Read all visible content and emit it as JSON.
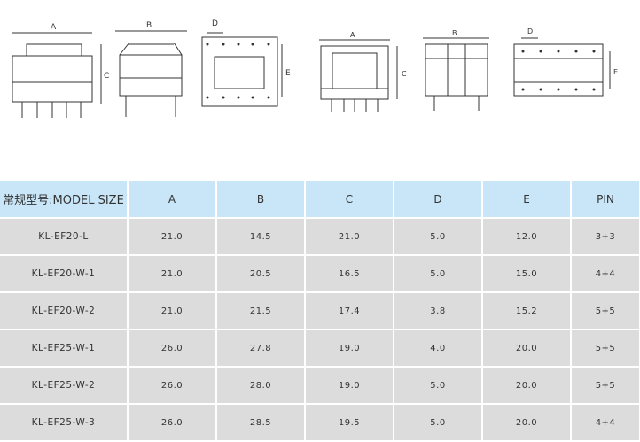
{
  "drawings": {
    "labels": {
      "a": "A",
      "b": "B",
      "c": "C",
      "d": "D",
      "e": "E"
    }
  },
  "table": {
    "headers": [
      "常规型号:MODEL SIZE",
      "A",
      "B",
      "C",
      "D",
      "E",
      "PIN"
    ],
    "rows": [
      [
        "KL-EF20-L",
        "21.0",
        "14.5",
        "21.0",
        "5.0",
        "12.0",
        "3+3"
      ],
      [
        "KL-EF20-W-1",
        "21.0",
        "20.5",
        "16.5",
        "5.0",
        "15.0",
        "4+4"
      ],
      [
        "KL-EF20-W-2",
        "21.0",
        "21.5",
        "17.4",
        "3.8",
        "15.2",
        "5+5"
      ],
      [
        "KL-EF25-W-1",
        "26.0",
        "27.8",
        "19.0",
        "4.0",
        "20.0",
        "5+5"
      ],
      [
        "KL-EF25-W-2",
        "26.0",
        "28.0",
        "19.0",
        "5.0",
        "20.0",
        "5+5"
      ],
      [
        "KL-EF25-W-3",
        "26.0",
        "28.5",
        "19.5",
        "5.0",
        "20.0",
        "4+4"
      ]
    ]
  }
}
